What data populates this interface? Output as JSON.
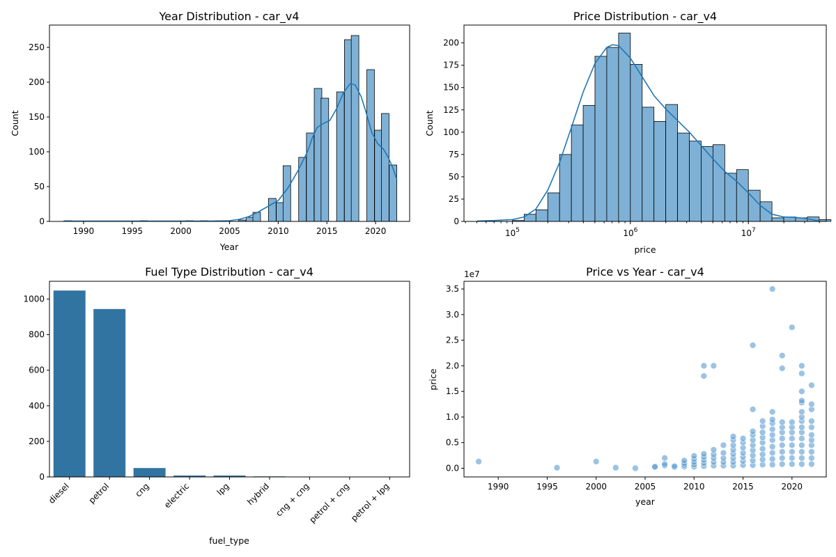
{
  "colors": {
    "bar": "#7fb1d6",
    "bar_edge": "#000000",
    "kde": "#1f77b4",
    "fuel_bar": "#3274a1",
    "scatter": "#5a9bd0"
  },
  "chart_data": [
    {
      "type": "bar",
      "kind": "histogram-kde",
      "title": "Year Distribution - car_v4",
      "xlabel": "Year",
      "ylabel": "Count",
      "xlim": [
        1986.5,
        2023.5
      ],
      "ylim": [
        0,
        282
      ],
      "xticks": [
        1990,
        1995,
        2000,
        2005,
        2010,
        2015,
        2020
      ],
      "xtick_labels": [
        "1990",
        "1995",
        "2000",
        "2005",
        "2010",
        "2015",
        "2020"
      ],
      "yticks": [
        0,
        50,
        100,
        150,
        200,
        250
      ],
      "ytick_labels": [
        "0",
        "50",
        "100",
        "150",
        "200",
        "250"
      ],
      "bin_width": 0.78,
      "bins": [
        {
          "x0": 1988.0,
          "count": 1
        },
        {
          "x0": 1995.8,
          "count": 1
        },
        {
          "x0": 2000.5,
          "count": 1
        },
        {
          "x0": 2002.0,
          "count": 1
        },
        {
          "x0": 2003.6,
          "count": 1
        },
        {
          "x0": 2005.9,
          "count": 2
        },
        {
          "x0": 2006.7,
          "count": 6
        },
        {
          "x0": 2007.4,
          "count": 13
        },
        {
          "x0": 2009.0,
          "count": 33
        },
        {
          "x0": 2009.8,
          "count": 27
        },
        {
          "x0": 2010.5,
          "count": 80
        },
        {
          "x0": 2012.1,
          "count": 92
        },
        {
          "x0": 2012.9,
          "count": 127
        },
        {
          "x0": 2013.7,
          "count": 191
        },
        {
          "x0": 2014.4,
          "count": 177
        },
        {
          "x0": 2016.0,
          "count": 186
        },
        {
          "x0": 2016.8,
          "count": 261
        },
        {
          "x0": 2017.5,
          "count": 267
        },
        {
          "x0": 2019.1,
          "count": 218
        },
        {
          "x0": 2019.9,
          "count": 131
        },
        {
          "x0": 2020.6,
          "count": 155
        },
        {
          "x0": 2021.4,
          "count": 81
        }
      ],
      "kde": [
        [
          1988,
          0.5
        ],
        [
          1995,
          0.5
        ],
        [
          2000,
          0.5
        ],
        [
          2003,
          0.5
        ],
        [
          2005,
          1
        ],
        [
          2006,
          3
        ],
        [
          2007,
          7
        ],
        [
          2008,
          14
        ],
        [
          2009,
          22
        ],
        [
          2010,
          30
        ],
        [
          2011,
          48
        ],
        [
          2012,
          72
        ],
        [
          2013,
          100
        ],
        [
          2013.5,
          120
        ],
        [
          2014,
          135
        ],
        [
          2014.7,
          141
        ],
        [
          2015.3,
          145
        ],
        [
          2016,
          162
        ],
        [
          2016.7,
          185
        ],
        [
          2017.4,
          198
        ],
        [
          2017.9,
          196
        ],
        [
          2018.5,
          180
        ],
        [
          2019,
          158
        ],
        [
          2019.6,
          128
        ],
        [
          2020.2,
          112
        ],
        [
          2020.8,
          104
        ],
        [
          2021.3,
          92
        ],
        [
          2021.8,
          76
        ],
        [
          2022.2,
          60
        ]
      ]
    },
    {
      "type": "bar",
      "kind": "histogram-kde",
      "title": "Price Distribution - car_v4",
      "xlabel": "price",
      "ylabel": "Count",
      "xscale": "log",
      "xlim_log10": [
        4.59,
        7.66
      ],
      "ylim": [
        0,
        220
      ],
      "xticks_log10": [
        5,
        6,
        7
      ],
      "xtick_bases": [
        "10",
        "10",
        "10"
      ],
      "xtick_exps": [
        "5",
        "6",
        "7"
      ],
      "yticks": [
        0,
        25,
        50,
        75,
        100,
        125,
        150,
        175,
        200
      ],
      "ytick_labels": [
        "0",
        "25",
        "50",
        "75",
        "100",
        "125",
        "150",
        "175",
        "200"
      ],
      "bin_width_log10": 0.1,
      "bins": [
        {
          "x0_log10": 5.0,
          "count": 1
        },
        {
          "x0_log10": 5.1,
          "count": 8
        },
        {
          "x0_log10": 5.2,
          "count": 13
        },
        {
          "x0_log10": 5.3,
          "count": 32
        },
        {
          "x0_log10": 5.4,
          "count": 75
        },
        {
          "x0_log10": 5.5,
          "count": 108
        },
        {
          "x0_log10": 5.6,
          "count": 130
        },
        {
          "x0_log10": 5.7,
          "count": 185
        },
        {
          "x0_log10": 5.8,
          "count": 195
        },
        {
          "x0_log10": 5.9,
          "count": 211
        },
        {
          "x0_log10": 6.0,
          "count": 176
        },
        {
          "x0_log10": 6.1,
          "count": 128
        },
        {
          "x0_log10": 6.2,
          "count": 112
        },
        {
          "x0_log10": 6.3,
          "count": 131
        },
        {
          "x0_log10": 6.4,
          "count": 99
        },
        {
          "x0_log10": 6.5,
          "count": 90
        },
        {
          "x0_log10": 6.6,
          "count": 84
        },
        {
          "x0_log10": 6.7,
          "count": 86
        },
        {
          "x0_log10": 6.8,
          "count": 54
        },
        {
          "x0_log10": 6.9,
          "count": 58
        },
        {
          "x0_log10": 7.0,
          "count": 35
        },
        {
          "x0_log10": 7.1,
          "count": 22
        },
        {
          "x0_log10": 7.2,
          "count": 4
        },
        {
          "x0_log10": 7.3,
          "count": 5
        },
        {
          "x0_log10": 7.4,
          "count": 4
        },
        {
          "x0_log10": 7.5,
          "count": 5
        },
        {
          "x0_log10": 7.6,
          "count": 2
        }
      ],
      "kde": [
        [
          4.7,
          0.5
        ],
        [
          4.85,
          1
        ],
        [
          5.0,
          2
        ],
        [
          5.1,
          5
        ],
        [
          5.2,
          14
        ],
        [
          5.3,
          35
        ],
        [
          5.4,
          66
        ],
        [
          5.5,
          105
        ],
        [
          5.6,
          145
        ],
        [
          5.7,
          177
        ],
        [
          5.8,
          195
        ],
        [
          5.85,
          198
        ],
        [
          5.9,
          197
        ],
        [
          6.0,
          183
        ],
        [
          6.1,
          162
        ],
        [
          6.2,
          141
        ],
        [
          6.3,
          126
        ],
        [
          6.4,
          113
        ],
        [
          6.5,
          100
        ],
        [
          6.6,
          85
        ],
        [
          6.7,
          70
        ],
        [
          6.8,
          56
        ],
        [
          6.9,
          45
        ],
        [
          7.0,
          32
        ],
        [
          7.1,
          18
        ],
        [
          7.2,
          8
        ],
        [
          7.3,
          5
        ],
        [
          7.4,
          4.5
        ],
        [
          7.5,
          3
        ],
        [
          7.6,
          0.5
        ]
      ]
    },
    {
      "type": "bar",
      "title": "Fuel Type Distribution - car_v4",
      "xlabel": "fuel_type",
      "ylabel": "",
      "categories": [
        "diesel",
        "petrol",
        "cng",
        "electric",
        "lpg",
        "hybrid",
        "cng + cng",
        "petrol + cng",
        "petrol + lpg"
      ],
      "values": [
        1048,
        944,
        50,
        8,
        8,
        3,
        2,
        2,
        2
      ],
      "ylim": [
        0,
        1100
      ],
      "yticks": [
        0,
        200,
        400,
        600,
        800,
        1000
      ],
      "ytick_labels": [
        "0",
        "200",
        "400",
        "600",
        "800",
        "1000"
      ]
    },
    {
      "type": "scatter",
      "title": "Price vs Year - car_v4",
      "xlabel": "year",
      "ylabel": "price",
      "y_offset_label": "1e7",
      "y_unit_scale": 10000000,
      "xlim": [
        1986.5,
        2023.5
      ],
      "ylim": [
        -0.17,
        3.65
      ],
      "xticks": [
        1990,
        1995,
        2000,
        2005,
        2010,
        2015,
        2020
      ],
      "xtick_labels": [
        "1990",
        "1995",
        "2000",
        "2005",
        "2010",
        "2015",
        "2020"
      ],
      "yticks": [
        0,
        0.5,
        1.0,
        1.5,
        2.0,
        2.5,
        3.0,
        3.5
      ],
      "ytick_labels": [
        "0.0",
        "0.5",
        "1.0",
        "1.5",
        "2.0",
        "2.5",
        "3.0",
        "3.5"
      ],
      "points": [
        [
          1988,
          0.13
        ],
        [
          1996,
          0.01
        ],
        [
          2000,
          0.13
        ],
        [
          2002,
          0.01
        ],
        [
          2004,
          0.0
        ],
        [
          2006,
          0.02
        ],
        [
          2006,
          0.03
        ],
        [
          2007,
          0.05
        ],
        [
          2007,
          0.08
        ],
        [
          2007,
          0.2
        ],
        [
          2008,
          0.02
        ],
        [
          2008,
          0.04
        ],
        [
          2009,
          0.03
        ],
        [
          2009,
          0.06
        ],
        [
          2009,
          0.1
        ],
        [
          2009,
          0.15
        ],
        [
          2010,
          0.03
        ],
        [
          2010,
          0.07
        ],
        [
          2010,
          0.12
        ],
        [
          2010,
          0.18
        ],
        [
          2010,
          0.24
        ],
        [
          2011,
          0.04
        ],
        [
          2011,
          0.1
        ],
        [
          2011,
          0.16
        ],
        [
          2011,
          0.22
        ],
        [
          2011,
          0.28
        ],
        [
          2011,
          1.8
        ],
        [
          2011,
          2.0
        ],
        [
          2012,
          0.05
        ],
        [
          2012,
          0.12
        ],
        [
          2012,
          0.2
        ],
        [
          2012,
          0.27
        ],
        [
          2012,
          0.36
        ],
        [
          2012,
          2.0
        ],
        [
          2013,
          0.05
        ],
        [
          2013,
          0.12
        ],
        [
          2013,
          0.2
        ],
        [
          2013,
          0.3
        ],
        [
          2013,
          0.45
        ],
        [
          2014,
          0.05
        ],
        [
          2014,
          0.12
        ],
        [
          2014,
          0.2
        ],
        [
          2014,
          0.28
        ],
        [
          2014,
          0.36
        ],
        [
          2014,
          0.45
        ],
        [
          2014,
          0.55
        ],
        [
          2014,
          0.62
        ],
        [
          2015,
          0.06
        ],
        [
          2015,
          0.14
        ],
        [
          2015,
          0.22
        ],
        [
          2015,
          0.3
        ],
        [
          2015,
          0.4
        ],
        [
          2015,
          0.5
        ],
        [
          2015,
          0.58
        ],
        [
          2016,
          0.06
        ],
        [
          2016,
          0.15
        ],
        [
          2016,
          0.25
        ],
        [
          2016,
          0.35
        ],
        [
          2016,
          0.45
        ],
        [
          2016,
          0.55
        ],
        [
          2016,
          0.65
        ],
        [
          2016,
          0.72
        ],
        [
          2016,
          1.15
        ],
        [
          2016,
          2.4
        ],
        [
          2017,
          0.07
        ],
        [
          2017,
          0.17
        ],
        [
          2017,
          0.27
        ],
        [
          2017,
          0.38
        ],
        [
          2017,
          0.5
        ],
        [
          2017,
          0.6
        ],
        [
          2017,
          0.7
        ],
        [
          2017,
          0.82
        ],
        [
          2017,
          0.92
        ],
        [
          2018,
          0.07
        ],
        [
          2018,
          0.18
        ],
        [
          2018,
          0.3
        ],
        [
          2018,
          0.42
        ],
        [
          2018,
          0.55
        ],
        [
          2018,
          0.65
        ],
        [
          2018,
          0.76
        ],
        [
          2018,
          0.88
        ],
        [
          2018,
          0.95
        ],
        [
          2018,
          1.1
        ],
        [
          2018,
          3.5
        ],
        [
          2019,
          0.08
        ],
        [
          2019,
          0.2
        ],
        [
          2019,
          0.32
        ],
        [
          2019,
          0.45
        ],
        [
          2019,
          0.58
        ],
        [
          2019,
          0.7
        ],
        [
          2019,
          0.8
        ],
        [
          2019,
          0.9
        ],
        [
          2019,
          1.95
        ],
        [
          2019,
          2.2
        ],
        [
          2020,
          0.08
        ],
        [
          2020,
          0.2
        ],
        [
          2020,
          0.32
        ],
        [
          2020,
          0.45
        ],
        [
          2020,
          0.58
        ],
        [
          2020,
          0.7
        ],
        [
          2020,
          0.8
        ],
        [
          2020,
          0.9
        ],
        [
          2020,
          2.75
        ],
        [
          2021,
          0.08
        ],
        [
          2021,
          0.2
        ],
        [
          2021,
          0.32
        ],
        [
          2021,
          0.45
        ],
        [
          2021,
          0.58
        ],
        [
          2021,
          0.7
        ],
        [
          2021,
          0.8
        ],
        [
          2021,
          0.92
        ],
        [
          2021,
          1.0
        ],
        [
          2021,
          1.1
        ],
        [
          2021,
          1.28
        ],
        [
          2021,
          1.32
        ],
        [
          2021,
          1.5
        ],
        [
          2021,
          1.85
        ],
        [
          2021,
          2.0
        ],
        [
          2022,
          0.08
        ],
        [
          2022,
          0.2
        ],
        [
          2022,
          0.32
        ],
        [
          2022,
          0.45
        ],
        [
          2022,
          0.55
        ],
        [
          2022,
          0.65
        ],
        [
          2022,
          0.8
        ],
        [
          2022,
          0.92
        ],
        [
          2022,
          1.15
        ],
        [
          2022,
          1.25
        ],
        [
          2022,
          1.62
        ]
      ]
    }
  ]
}
